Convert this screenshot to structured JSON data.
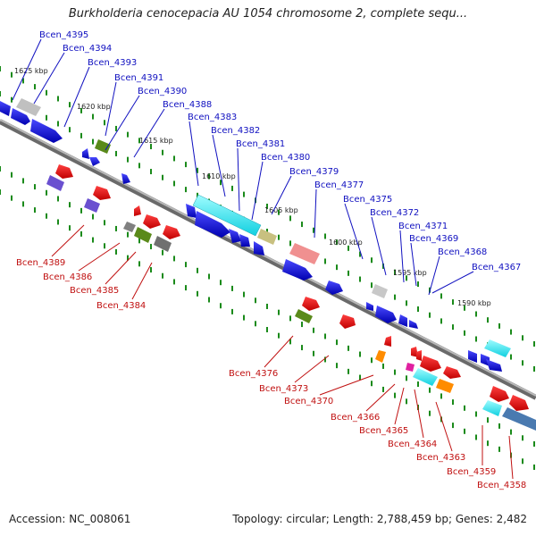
{
  "title": "Burkholderia cenocepacia AU 1054 chromosome 2, complete sequ...",
  "footer": {
    "accession": "Accession: NC_008061",
    "summary": "Topology: circular; Length: 2,788,459 bp; Genes: 2,482"
  },
  "colors": {
    "top_labels": "#1010c0",
    "bottom_labels": "#c01010",
    "backbone": "#8a8a8a",
    "ticks": "#1a8a1a"
  },
  "kbp_ticks": [
    "1625 kbp",
    "1620 kbp",
    "1615 kbp",
    "1610 kbp",
    "1605 kbp",
    "1600 kbp",
    "1595 kbp",
    "1590 kbp"
  ],
  "top_genes": [
    "Bcen_4395",
    "Bcen_4394",
    "Bcen_4393",
    "Bcen_4391",
    "Bcen_4390",
    "Bcen_4388",
    "Bcen_4383",
    "Bcen_4382",
    "Bcen_4381",
    "Bcen_4380",
    "Bcen_4379",
    "Bcen_4377",
    "Bcen_4375",
    "Bcen_4372",
    "Bcen_4371",
    "Bcen_4369",
    "Bcen_4368",
    "Bcen_4367"
  ],
  "bottom_genes": [
    "Bcen_4389",
    "Bcen_4386",
    "Bcen_4385",
    "Bcen_4384",
    "Bcen_4376",
    "Bcen_4373",
    "Bcen_4370",
    "Bcen_4366",
    "Bcen_4365",
    "Bcen_4364",
    "Bcen_4363",
    "Bcen_4359",
    "Bcen_4358"
  ]
}
